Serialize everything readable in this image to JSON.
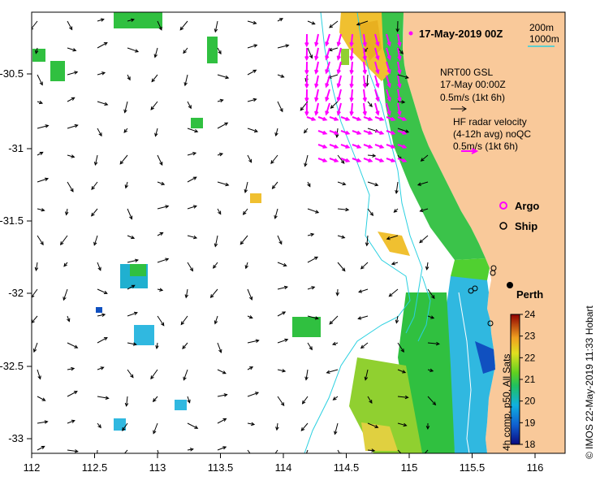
{
  "title": "17-May-2019 00Z",
  "scale": {
    "label_a": "200m",
    "label_b": "1000m"
  },
  "nrt": {
    "line1": "NRT00 GSL",
    "line2": "17-May 00:00Z",
    "line3": "0.5m/s (1kt 6h)"
  },
  "hf": {
    "line1": "HF radar velocity",
    "line2": "(4-12h avg) noQC",
    "line3": "0.5m/s (1kt 6h)"
  },
  "legend": {
    "argo": "Argo",
    "ship": "Ship"
  },
  "city": "Perth",
  "credit": "© IMOS 22-May-2019 11:33 Hobart",
  "colorbar": {
    "label": "4h comp, p50, All Sats",
    "ticks": [
      "18",
      "19",
      "20",
      "21",
      "22",
      "23",
      "24"
    ],
    "min": 18,
    "max": 24
  },
  "axes": {
    "x_ticks": [
      "112",
      "112.5",
      "113",
      "113.5",
      "114",
      "114.5",
      "115",
      "115.5",
      "116"
    ],
    "y_ticks": [
      "-30.5",
      "-31",
      "-31.5",
      "-32",
      "-32.5",
      "-33"
    ]
  },
  "colors": {
    "land": "#f9c99a",
    "isobath": "#2ad0e0",
    "hf_arrow": "#ff00ff",
    "border": "#000000"
  }
}
